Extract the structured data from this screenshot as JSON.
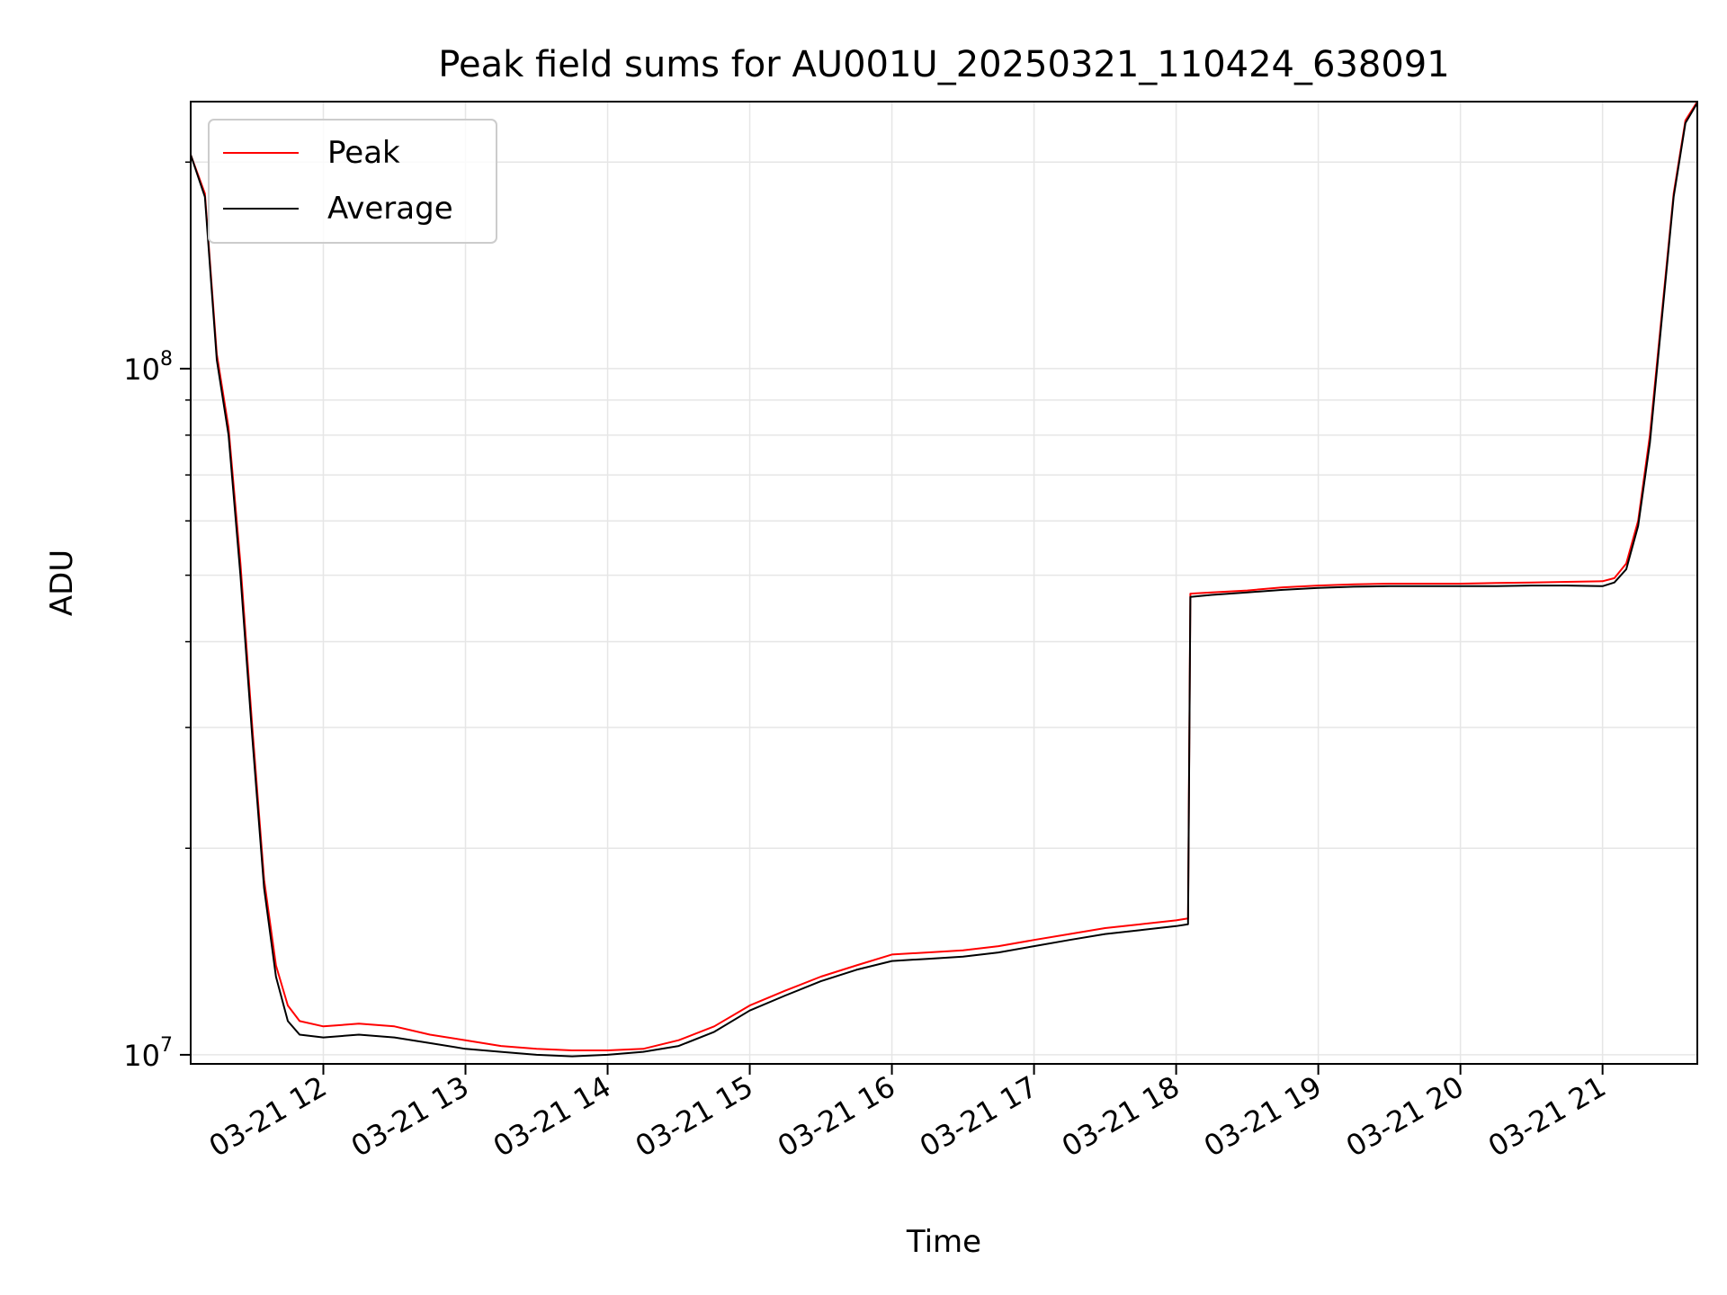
{
  "chart_data": {
    "type": "line",
    "title": "Peak field sums for AU001U_20250321_110424_638091",
    "xlabel": "Time",
    "ylabel": "ADU",
    "y_scale": "log",
    "ylim": [
      9700000.0,
      245000000.0
    ],
    "xlim": [
      "2025-03-21 11:04",
      "2025-03-21 21:40"
    ],
    "x_tick_labels": [
      "03-21 12",
      "03-21 13",
      "03-21 14",
      "03-21 15",
      "03-21 16",
      "03-21 17",
      "03-21 18",
      "03-21 19",
      "03-21 20",
      "03-21 21"
    ],
    "x_tick_rotation_deg": 30,
    "y_tick_labels": [
      {
        "base": "10",
        "exp": "8",
        "value": 100000000.0
      },
      {
        "base": "10",
        "exp": "7",
        "value": 10000000.0
      }
    ],
    "grid": true,
    "legend_position": "upper-left",
    "colors": {
      "peak": "#ff0000",
      "average": "#000000",
      "grid": "#e6e6e6"
    },
    "series": [
      {
        "name": "Peak",
        "x": [
          "2025-03-21 11:04",
          "2025-03-21 11:10",
          "2025-03-21 11:15",
          "2025-03-21 11:20",
          "2025-03-21 11:25",
          "2025-03-21 11:30",
          "2025-03-21 11:35",
          "2025-03-21 11:40",
          "2025-03-21 11:45",
          "2025-03-21 11:50",
          "2025-03-21 12:00",
          "2025-03-21 12:15",
          "2025-03-21 12:30",
          "2025-03-21 12:45",
          "2025-03-21 13:00",
          "2025-03-21 13:15",
          "2025-03-21 13:30",
          "2025-03-21 13:45",
          "2025-03-21 14:00",
          "2025-03-21 14:15",
          "2025-03-21 14:30",
          "2025-03-21 14:45",
          "2025-03-21 15:00",
          "2025-03-21 15:15",
          "2025-03-21 15:30",
          "2025-03-21 15:45",
          "2025-03-21 16:00",
          "2025-03-21 16:15",
          "2025-03-21 16:30",
          "2025-03-21 16:45",
          "2025-03-21 17:00",
          "2025-03-21 17:15",
          "2025-03-21 17:30",
          "2025-03-21 17:45",
          "2025-03-21 18:00",
          "2025-03-21 18:05",
          "2025-03-21 18:06",
          "2025-03-21 18:15",
          "2025-03-21 18:30",
          "2025-03-21 18:45",
          "2025-03-21 19:00",
          "2025-03-21 19:15",
          "2025-03-21 19:30",
          "2025-03-21 19:45",
          "2025-03-21 20:00",
          "2025-03-21 20:15",
          "2025-03-21 20:30",
          "2025-03-21 20:45",
          "2025-03-21 21:00",
          "2025-03-21 21:05",
          "2025-03-21 21:10",
          "2025-03-21 21:15",
          "2025-03-21 21:20",
          "2025-03-21 21:25",
          "2025-03-21 21:30",
          "2025-03-21 21:35",
          "2025-03-21 21:40"
        ],
        "y": [
          205000000,
          180000000,
          105000000,
          82000000,
          52000000,
          30000000,
          18000000,
          13500000,
          11800000,
          11200000,
          11000000,
          11100000,
          11000000,
          10700000,
          10500000,
          10300000,
          10200000,
          10150000,
          10150000,
          10200000,
          10500000,
          11000000,
          11800000,
          12400000,
          13000000,
          13500000,
          14000000,
          14100000,
          14200000,
          14400000,
          14700000,
          15000000,
          15300000,
          15500000,
          15700000,
          15800000,
          47000000,
          47200000,
          47500000,
          48000000,
          48300000,
          48500000,
          48600000,
          48600000,
          48600000,
          48700000,
          48800000,
          48900000,
          49000000,
          49500000,
          52000000,
          60000000,
          80000000,
          120000000,
          180000000,
          230000000,
          245000000
        ]
      },
      {
        "name": "Average",
        "x": [
          "2025-03-21 11:04",
          "2025-03-21 11:10",
          "2025-03-21 11:15",
          "2025-03-21 11:20",
          "2025-03-21 11:25",
          "2025-03-21 11:30",
          "2025-03-21 11:35",
          "2025-03-21 11:40",
          "2025-03-21 11:45",
          "2025-03-21 11:50",
          "2025-03-21 12:00",
          "2025-03-21 12:15",
          "2025-03-21 12:30",
          "2025-03-21 12:45",
          "2025-03-21 13:00",
          "2025-03-21 13:15",
          "2025-03-21 13:30",
          "2025-03-21 13:45",
          "2025-03-21 14:00",
          "2025-03-21 14:15",
          "2025-03-21 14:30",
          "2025-03-21 14:45",
          "2025-03-21 15:00",
          "2025-03-21 15:15",
          "2025-03-21 15:30",
          "2025-03-21 15:45",
          "2025-03-21 16:00",
          "2025-03-21 16:15",
          "2025-03-21 16:30",
          "2025-03-21 16:45",
          "2025-03-21 17:00",
          "2025-03-21 17:15",
          "2025-03-21 17:30",
          "2025-03-21 17:45",
          "2025-03-21 18:00",
          "2025-03-21 18:05",
          "2025-03-21 18:06",
          "2025-03-21 18:15",
          "2025-03-21 18:30",
          "2025-03-21 18:45",
          "2025-03-21 19:00",
          "2025-03-21 19:15",
          "2025-03-21 19:30",
          "2025-03-21 19:45",
          "2025-03-21 20:00",
          "2025-03-21 20:15",
          "2025-03-21 20:30",
          "2025-03-21 20:45",
          "2025-03-21 21:00",
          "2025-03-21 21:05",
          "2025-03-21 21:10",
          "2025-03-21 21:15",
          "2025-03-21 21:20",
          "2025-03-21 21:25",
          "2025-03-21 21:30",
          "2025-03-21 21:35",
          "2025-03-21 21:40"
        ],
        "y": [
          205000000,
          178000000,
          103000000,
          80000000,
          50000000,
          29000000,
          17500000,
          13000000,
          11200000,
          10700000,
          10600000,
          10700000,
          10600000,
          10400000,
          10200000,
          10100000,
          10000000,
          9950000,
          10000000,
          10100000,
          10300000,
          10800000,
          11600000,
          12200000,
          12800000,
          13300000,
          13700000,
          13800000,
          13900000,
          14100000,
          14400000,
          14700000,
          15000000,
          15200000,
          15400000,
          15500000,
          46500000,
          46800000,
          47200000,
          47600000,
          47900000,
          48100000,
          48200000,
          48200000,
          48200000,
          48200000,
          48300000,
          48300000,
          48200000,
          48800000,
          51000000,
          59000000,
          78000000,
          118000000,
          178000000,
          228000000,
          244000000
        ]
      }
    ]
  }
}
